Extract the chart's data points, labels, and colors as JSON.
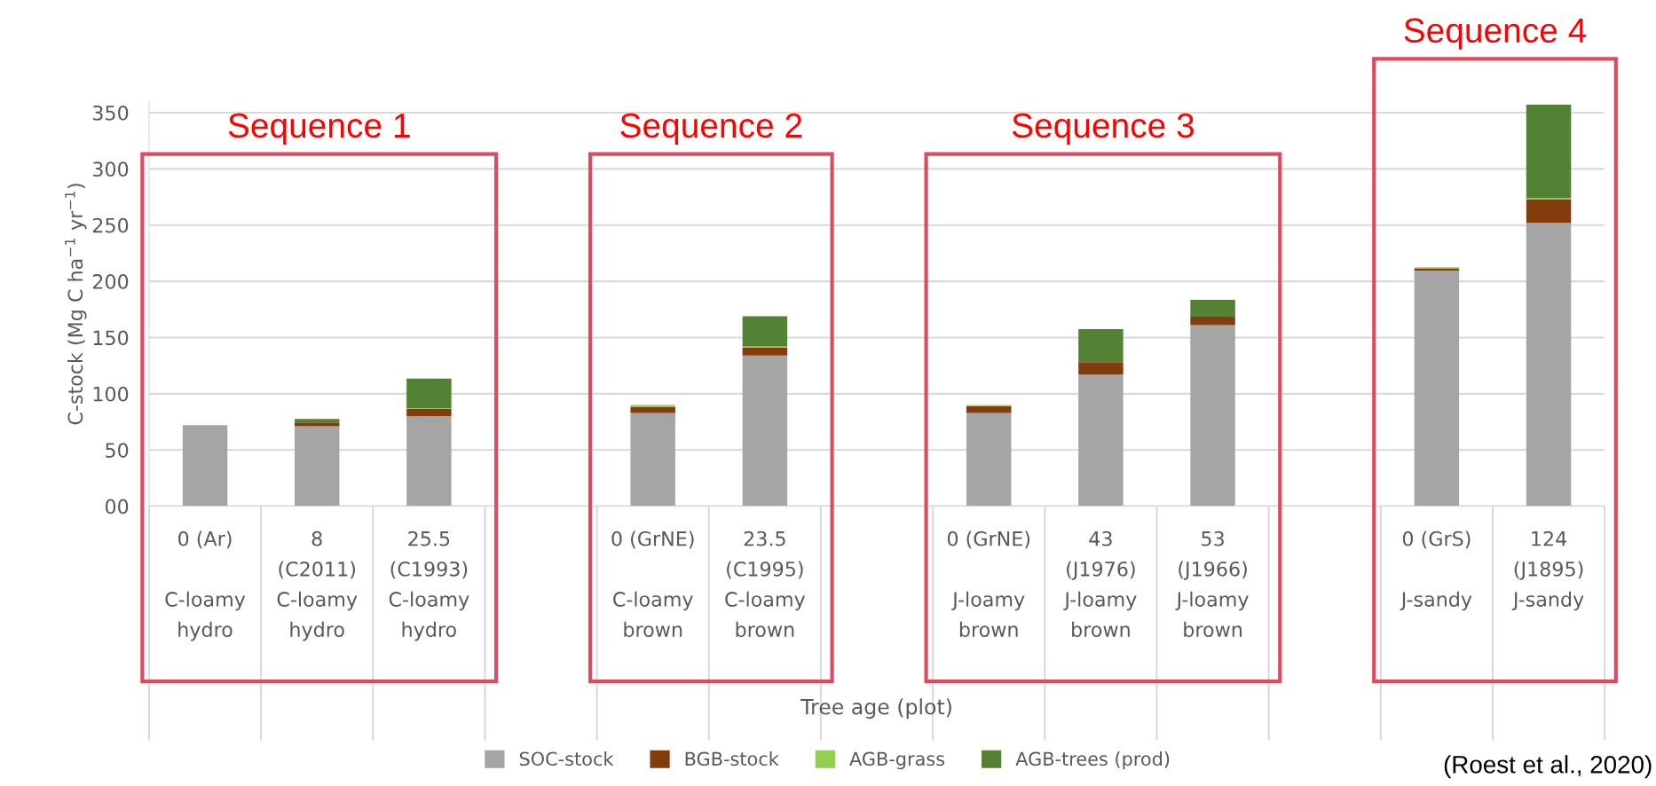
{
  "chart_data": {
    "type": "bar",
    "stacked": true,
    "ylabel": "C-stock (Mg C ha$^{−1}$ yr$^{−1}$)",
    "xlabel": "Tree age (plot)",
    "categories": [
      "0 (Ar)\n\nC-loamy\nhydro",
      "8\n(C2011)\nC-loamy\nhydro",
      "25.5\n(C1993)\nC-loamy\nhydro",
      null,
      "0 (GrNE)\n\nC-loamy\nbrown",
      "23.5\n(C1995)\nC-loamy\nbrown",
      null,
      "0 (GrNE)\n\nJ-loamy\nbrown",
      "43\n(J1976)\nJ-loamy\nbrown",
      "53\n(J1966)\nJ-loamy\nbrown",
      null,
      "0 (GrS)\n\nJ-sandy",
      "124\n(J1895)\nJ-sandy"
    ],
    "series": [
      {
        "name": "SOC-stock",
        "color": "#a5a5a5",
        "values": [
          72,
          71,
          80,
          null,
          83,
          134,
          null,
          83,
          117,
          161,
          null,
          209.5,
          252
        ]
      },
      {
        "name": "BGB-stock",
        "color": "#843c0c",
        "values": [
          0,
          3.5,
          6.5,
          null,
          5.5,
          7,
          null,
          6,
          11,
          7.5,
          null,
          2,
          21
        ]
      },
      {
        "name": "AGB-grass",
        "color": "#92d050",
        "values": [
          0,
          null,
          0.5,
          null,
          1.5,
          1,
          null,
          1,
          null,
          0,
          null,
          1,
          1
        ]
      },
      {
        "name": "AGB-trees (prod)",
        "color": "#548235",
        "values": [
          0,
          3,
          26.5,
          null,
          0,
          27,
          null,
          0,
          29.5,
          15,
          null,
          0,
          83
        ]
      }
    ],
    "ylim": [
      0,
      360
    ],
    "yticks": [
      {
        "value": 0,
        "label": "00"
      },
      50,
      100,
      150,
      200,
      250,
      300,
      350
    ],
    "grid": "y",
    "legend": "bottom",
    "annotations": [
      "Sequence 1",
      "Sequence 2",
      "Sequence 3",
      "Sequence 4",
      "(Roest et al., 2020)"
    ]
  }
}
